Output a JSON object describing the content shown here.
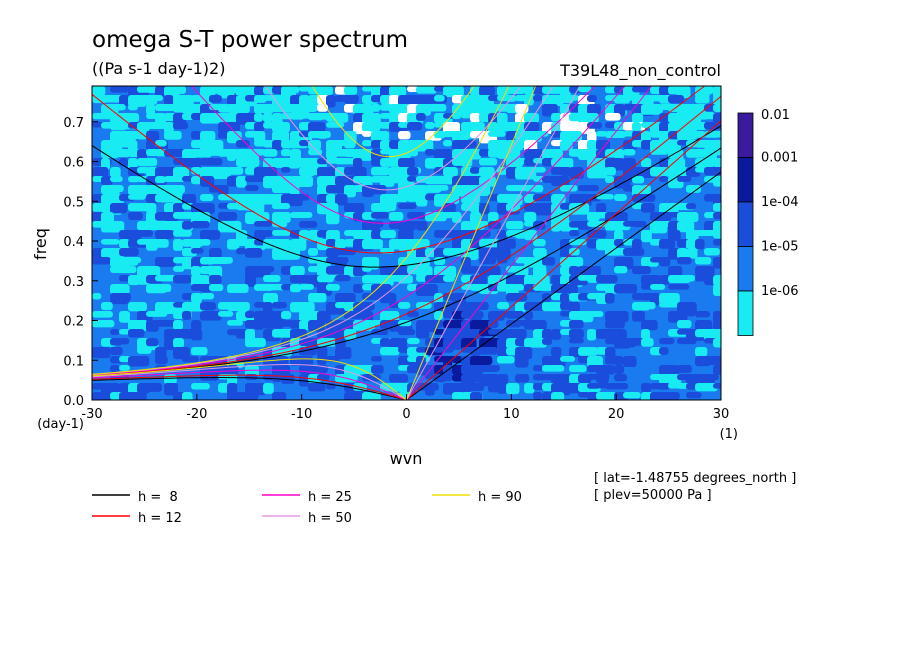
{
  "chart_data": {
    "type": "heatmap",
    "title": "omega S-T power spectrum",
    "subtitle": "((Pa s-1 day-1)2)",
    "experiment": "T39L48_non_control",
    "xlabel": "wvn",
    "ylabel": "freq",
    "x_unit": "(1)",
    "y_unit": "(day-1)",
    "xlim": [
      -30,
      30
    ],
    "ylim": [
      0,
      0.79
    ],
    "x_ticks": [
      "-30",
      "-20",
      "-10",
      "0",
      "10",
      "20",
      "30"
    ],
    "x_tick_values": [
      -30,
      -20,
      -10,
      0,
      10,
      20,
      30
    ],
    "y_ticks": [
      "0.0",
      "0.1",
      "0.2",
      "0.3",
      "0.4",
      "0.5",
      "0.6",
      "0.7"
    ],
    "y_tick_values": [
      0,
      0.1,
      0.2,
      0.3,
      0.4,
      0.5,
      0.6,
      0.7
    ],
    "colorbar": {
      "levels": [
        "0.01",
        "0.001",
        "1e-04",
        "1e-05",
        "1e-06"
      ],
      "colors": [
        "#3a1a9e",
        "#0a1a9e",
        "#1a4ddb",
        "#1a7af0",
        "#19ebf2"
      ]
    },
    "field_colors": {
      "low": "#19ebf2",
      "mid": "#1a7af0",
      "high": "#1a4ddb",
      "peak": "#0a1a9e",
      "gap": "#ffffff"
    },
    "dispersion_curves": [
      {
        "label": "h =  8",
        "h": 8,
        "color": "#000000"
      },
      {
        "label": "h = 12",
        "h": 12,
        "color": "#ff0000"
      },
      {
        "label": "h = 25",
        "h": 25,
        "color": "#ff00cc"
      },
      {
        "label": "h = 50",
        "h": 50,
        "color": "#e29ae2"
      },
      {
        "label": "h = 90",
        "h": 90,
        "color": "#f0e000"
      }
    ],
    "annotations": [
      "[ lat=-1.48755 degrees_north ]",
      "[ plev=50000 Pa ]"
    ]
  }
}
